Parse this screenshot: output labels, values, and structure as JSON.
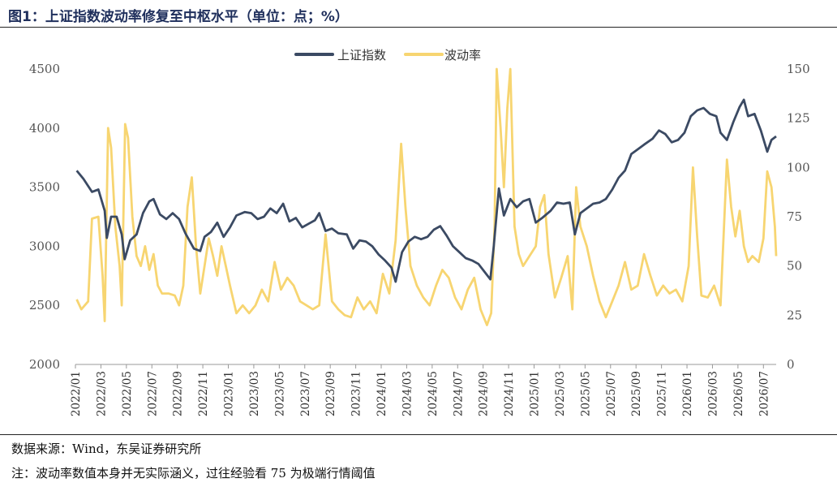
{
  "header": {
    "title": "图1：上证指数波动率修复至中枢水平（单位：点；%）"
  },
  "footer": {
    "source": "数据来源：Wind，东吴证券研究所",
    "note": "注：波动率数值本身并无实际涵义，过往经验看 75 为极端行情阈值"
  },
  "colors": {
    "index_line": "#3b4a63",
    "vol_line": "#f7d571",
    "axis": "#999999"
  },
  "chart_data": {
    "type": "line",
    "title": "",
    "grid": false,
    "legend_position": "top-center",
    "x_start": "2022-01",
    "x_end": "2026-08",
    "x_tick_labels": [
      "2022/01",
      "2022/03",
      "2022/05",
      "2022/07",
      "2022/09",
      "2022/11",
      "2023/01",
      "2023/03",
      "2023/05",
      "2023/07",
      "2023/09",
      "2023/11",
      "2024/01",
      "2024/03",
      "2024/05",
      "2024/07",
      "2024/09",
      "2024/11",
      "2025/01",
      "2025/03",
      "2025/05",
      "2025/07",
      "2025/09",
      "2025/11",
      "2026/01",
      "2026/03",
      "2026/05",
      "2026/07"
    ],
    "y_left": {
      "min": 2000,
      "max": 4500,
      "ticks": [
        "2000",
        "2500",
        "3000",
        "3500",
        "4000",
        "4500"
      ]
    },
    "y_right": {
      "min": 0,
      "max": 150,
      "ticks": [
        "0",
        "25",
        "50",
        "75",
        "100",
        "125",
        "150"
      ]
    },
    "series": [
      {
        "name": "上证指数",
        "axis": "left",
        "color": "#3b4a63",
        "points": [
          [
            "2022-01-04",
            3640
          ],
          [
            "2022-01-20",
            3570
          ],
          [
            "2022-02-10",
            3460
          ],
          [
            "2022-02-25",
            3480
          ],
          [
            "2022-03-10",
            3300
          ],
          [
            "2022-03-15",
            3070
          ],
          [
            "2022-03-25",
            3250
          ],
          [
            "2022-04-08",
            3250
          ],
          [
            "2022-04-20",
            3100
          ],
          [
            "2022-04-27",
            2890
          ],
          [
            "2022-05-10",
            3050
          ],
          [
            "2022-05-25",
            3100
          ],
          [
            "2022-06-10",
            3280
          ],
          [
            "2022-06-25",
            3380
          ],
          [
            "2022-07-05",
            3400
          ],
          [
            "2022-07-20",
            3270
          ],
          [
            "2022-08-05",
            3230
          ],
          [
            "2022-08-20",
            3280
          ],
          [
            "2022-09-05",
            3230
          ],
          [
            "2022-09-20",
            3110
          ],
          [
            "2022-10-10",
            2980
          ],
          [
            "2022-10-25",
            2960
          ],
          [
            "2022-11-05",
            3080
          ],
          [
            "2022-11-20",
            3120
          ],
          [
            "2022-12-05",
            3200
          ],
          [
            "2022-12-20",
            3080
          ],
          [
            "2023-01-05",
            3160
          ],
          [
            "2023-01-20",
            3260
          ],
          [
            "2023-02-10",
            3290
          ],
          [
            "2023-02-25",
            3280
          ],
          [
            "2023-03-10",
            3230
          ],
          [
            "2023-03-25",
            3250
          ],
          [
            "2023-04-10",
            3320
          ],
          [
            "2023-04-25",
            3280
          ],
          [
            "2023-05-10",
            3360
          ],
          [
            "2023-05-25",
            3210
          ],
          [
            "2023-06-10",
            3240
          ],
          [
            "2023-06-25",
            3160
          ],
          [
            "2023-07-10",
            3190
          ],
          [
            "2023-07-25",
            3220
          ],
          [
            "2023-08-05",
            3280
          ],
          [
            "2023-08-20",
            3130
          ],
          [
            "2023-09-05",
            3150
          ],
          [
            "2023-09-20",
            3110
          ],
          [
            "2023-10-10",
            3100
          ],
          [
            "2023-10-25",
            2980
          ],
          [
            "2023-11-10",
            3050
          ],
          [
            "2023-11-25",
            3040
          ],
          [
            "2023-12-10",
            3000
          ],
          [
            "2023-12-25",
            2930
          ],
          [
            "2024-01-10",
            2880
          ],
          [
            "2024-01-25",
            2820
          ],
          [
            "2024-02-05",
            2700
          ],
          [
            "2024-02-20",
            2950
          ],
          [
            "2024-03-05",
            3040
          ],
          [
            "2024-03-20",
            3080
          ],
          [
            "2024-04-05",
            3060
          ],
          [
            "2024-04-20",
            3080
          ],
          [
            "2024-05-05",
            3140
          ],
          [
            "2024-05-20",
            3170
          ],
          [
            "2024-06-05",
            3090
          ],
          [
            "2024-06-20",
            3000
          ],
          [
            "2024-07-05",
            2950
          ],
          [
            "2024-07-20",
            2900
          ],
          [
            "2024-08-05",
            2880
          ],
          [
            "2024-08-20",
            2850
          ],
          [
            "2024-09-05",
            2780
          ],
          [
            "2024-09-18",
            2720
          ],
          [
            "2024-09-26",
            3000
          ],
          [
            "2024-10-08",
            3490
          ],
          [
            "2024-10-20",
            3260
          ],
          [
            "2024-11-05",
            3400
          ],
          [
            "2024-11-20",
            3330
          ],
          [
            "2024-12-05",
            3380
          ],
          [
            "2024-12-20",
            3400
          ],
          [
            "2025-01-05",
            3200
          ],
          [
            "2025-01-20",
            3240
          ],
          [
            "2025-02-10",
            3300
          ],
          [
            "2025-02-25",
            3370
          ],
          [
            "2025-03-10",
            3360
          ],
          [
            "2025-03-25",
            3370
          ],
          [
            "2025-04-07",
            3100
          ],
          [
            "2025-04-20",
            3280
          ],
          [
            "2025-05-05",
            3320
          ],
          [
            "2025-05-20",
            3360
          ],
          [
            "2025-06-05",
            3370
          ],
          [
            "2025-06-20",
            3400
          ],
          [
            "2025-07-05",
            3480
          ],
          [
            "2025-07-20",
            3580
          ],
          [
            "2025-08-05",
            3640
          ],
          [
            "2025-08-20",
            3780
          ],
          [
            "2025-09-05",
            3820
          ],
          [
            "2025-09-20",
            3860
          ],
          [
            "2025-10-10",
            3910
          ],
          [
            "2025-10-25",
            3980
          ],
          [
            "2025-11-10",
            3950
          ],
          [
            "2025-11-25",
            3880
          ],
          [
            "2025-12-10",
            3900
          ],
          [
            "2025-12-25",
            3960
          ],
          [
            "2026-01-10",
            4100
          ],
          [
            "2026-01-25",
            4150
          ],
          [
            "2026-02-10",
            4170
          ],
          [
            "2026-02-25",
            4120
          ],
          [
            "2026-03-10",
            4100
          ],
          [
            "2026-03-20",
            3960
          ],
          [
            "2026-04-05",
            3900
          ],
          [
            "2026-04-20",
            4050
          ],
          [
            "2026-05-05",
            4180
          ],
          [
            "2026-05-15",
            4240
          ],
          [
            "2026-05-25",
            4100
          ],
          [
            "2026-06-10",
            4120
          ],
          [
            "2026-06-25",
            3980
          ],
          [
            "2026-07-10",
            3800
          ],
          [
            "2026-07-20",
            3900
          ],
          [
            "2026-08-01",
            3930
          ]
        ]
      },
      {
        "name": "波动率",
        "axis": "right",
        "color": "#f7d571",
        "points": [
          [
            "2022-01-04",
            33
          ],
          [
            "2022-01-15",
            28
          ],
          [
            "2022-02-01",
            32
          ],
          [
            "2022-02-10",
            74
          ],
          [
            "2022-02-25",
            75
          ],
          [
            "2022-03-05",
            45
          ],
          [
            "2022-03-10",
            22
          ],
          [
            "2022-03-18",
            120
          ],
          [
            "2022-03-25",
            110
          ],
          [
            "2022-04-05",
            70
          ],
          [
            "2022-04-15",
            50
          ],
          [
            "2022-04-20",
            30
          ],
          [
            "2022-04-28",
            122
          ],
          [
            "2022-05-05",
            115
          ],
          [
            "2022-05-15",
            75
          ],
          [
            "2022-05-25",
            55
          ],
          [
            "2022-06-05",
            50
          ],
          [
            "2022-06-15",
            60
          ],
          [
            "2022-06-25",
            48
          ],
          [
            "2022-07-05",
            56
          ],
          [
            "2022-07-15",
            40
          ],
          [
            "2022-07-25",
            36
          ],
          [
            "2022-08-10",
            36
          ],
          [
            "2022-08-25",
            35
          ],
          [
            "2022-09-05",
            30
          ],
          [
            "2022-09-15",
            40
          ],
          [
            "2022-09-25",
            80
          ],
          [
            "2022-10-05",
            95
          ],
          [
            "2022-10-15",
            60
          ],
          [
            "2022-10-25",
            36
          ],
          [
            "2022-11-05",
            50
          ],
          [
            "2022-11-15",
            64
          ],
          [
            "2022-11-25",
            55
          ],
          [
            "2022-12-05",
            45
          ],
          [
            "2022-12-15",
            60
          ],
          [
            "2022-12-25",
            50
          ],
          [
            "2023-01-05",
            40
          ],
          [
            "2023-01-20",
            26
          ],
          [
            "2023-02-05",
            30
          ],
          [
            "2023-02-20",
            26
          ],
          [
            "2023-03-05",
            30
          ],
          [
            "2023-03-20",
            38
          ],
          [
            "2023-04-05",
            32
          ],
          [
            "2023-04-20",
            52
          ],
          [
            "2023-05-05",
            38
          ],
          [
            "2023-05-20",
            44
          ],
          [
            "2023-06-05",
            40
          ],
          [
            "2023-06-20",
            32
          ],
          [
            "2023-07-05",
            30
          ],
          [
            "2023-07-20",
            28
          ],
          [
            "2023-08-05",
            30
          ],
          [
            "2023-08-20",
            66
          ],
          [
            "2023-09-05",
            32
          ],
          [
            "2023-09-20",
            28
          ],
          [
            "2023-10-05",
            25
          ],
          [
            "2023-10-20",
            24
          ],
          [
            "2023-11-05",
            34
          ],
          [
            "2023-11-20",
            28
          ],
          [
            "2023-12-05",
            32
          ],
          [
            "2023-12-20",
            26
          ],
          [
            "2024-01-05",
            46
          ],
          [
            "2024-01-20",
            36
          ],
          [
            "2024-02-05",
            63
          ],
          [
            "2024-02-18",
            112
          ],
          [
            "2024-02-28",
            80
          ],
          [
            "2024-03-10",
            50
          ],
          [
            "2024-03-25",
            40
          ],
          [
            "2024-04-10",
            34
          ],
          [
            "2024-04-25",
            30
          ],
          [
            "2024-05-10",
            40
          ],
          [
            "2024-05-25",
            48
          ],
          [
            "2024-06-10",
            44
          ],
          [
            "2024-06-25",
            34
          ],
          [
            "2024-07-10",
            28
          ],
          [
            "2024-07-25",
            38
          ],
          [
            "2024-08-10",
            44
          ],
          [
            "2024-08-25",
            28
          ],
          [
            "2024-09-10",
            20
          ],
          [
            "2024-09-20",
            26
          ],
          [
            "2024-09-28",
            70
          ],
          [
            "2024-10-03",
            150
          ],
          [
            "2024-10-12",
            120
          ],
          [
            "2024-10-20",
            90
          ],
          [
            "2024-10-28",
            130
          ],
          [
            "2024-11-05",
            150
          ],
          [
            "2024-11-15",
            70
          ],
          [
            "2024-11-25",
            56
          ],
          [
            "2024-12-05",
            50
          ],
          [
            "2024-12-20",
            55
          ],
          [
            "2025-01-05",
            60
          ],
          [
            "2025-01-15",
            80
          ],
          [
            "2025-01-25",
            86
          ],
          [
            "2025-02-05",
            56
          ],
          [
            "2025-02-20",
            34
          ],
          [
            "2025-03-05",
            44
          ],
          [
            "2025-03-20",
            55
          ],
          [
            "2025-04-01",
            28
          ],
          [
            "2025-04-10",
            90
          ],
          [
            "2025-04-20",
            70
          ],
          [
            "2025-05-05",
            60
          ],
          [
            "2025-05-20",
            45
          ],
          [
            "2025-06-05",
            32
          ],
          [
            "2025-06-20",
            24
          ],
          [
            "2025-07-05",
            32
          ],
          [
            "2025-07-20",
            40
          ],
          [
            "2025-08-05",
            52
          ],
          [
            "2025-08-20",
            38
          ],
          [
            "2025-09-05",
            40
          ],
          [
            "2025-09-20",
            56
          ],
          [
            "2025-10-05",
            45
          ],
          [
            "2025-10-20",
            35
          ],
          [
            "2025-11-05",
            40
          ],
          [
            "2025-11-20",
            36
          ],
          [
            "2025-12-05",
            38
          ],
          [
            "2025-12-20",
            32
          ],
          [
            "2026-01-05",
            50
          ],
          [
            "2026-01-15",
            100
          ],
          [
            "2026-01-25",
            65
          ],
          [
            "2026-02-05",
            35
          ],
          [
            "2026-02-20",
            34
          ],
          [
            "2026-03-05",
            40
          ],
          [
            "2026-03-20",
            30
          ],
          [
            "2026-04-05",
            104
          ],
          [
            "2026-04-15",
            80
          ],
          [
            "2026-04-25",
            65
          ],
          [
            "2026-05-05",
            78
          ],
          [
            "2026-05-15",
            60
          ],
          [
            "2026-05-25",
            52
          ],
          [
            "2026-06-05",
            55
          ],
          [
            "2026-06-20",
            52
          ],
          [
            "2026-07-01",
            64
          ],
          [
            "2026-07-10",
            98
          ],
          [
            "2026-07-20",
            90
          ],
          [
            "2026-07-28",
            70
          ],
          [
            "2026-08-01",
            55
          ]
        ]
      }
    ]
  }
}
